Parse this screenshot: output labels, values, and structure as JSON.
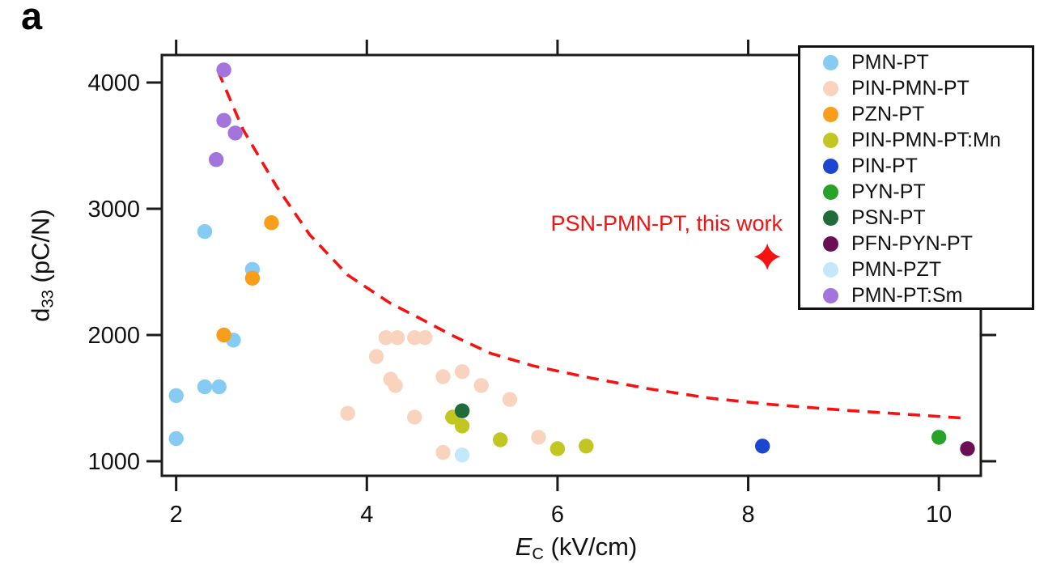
{
  "panel_label": "a",
  "colors": {
    "axis": "#1a1a1a",
    "background": "#ffffff",
    "highlight_red": "#f71111"
  },
  "axis": {
    "x_label": {
      "symbol": "E",
      "subscript": "C",
      "unit": " (kV/cm)"
    },
    "y_label": {
      "symbol": "d",
      "subscript": "33",
      "unit": " (pC/N)"
    }
  },
  "annotation": {
    "text": "PSN-PMN-PT, this work"
  },
  "chart_data": {
    "type": "scatter",
    "xlabel": "E_C (kV/cm)",
    "ylabel": "d33 (pC/N)",
    "xlim": [
      1.85,
      10.44
    ],
    "ylim": [
      885,
      4218
    ],
    "x_ticks": [
      2,
      4,
      6,
      8,
      10
    ],
    "y_ticks": [
      1000,
      2000,
      3000,
      4000
    ],
    "grid": false,
    "legend_position": "top-right",
    "series": [
      {
        "name": "PMN-PT",
        "color": "#85cbf2",
        "points": [
          [
            2.3,
            2820
          ],
          [
            2.8,
            2520
          ],
          [
            2.6,
            1960
          ],
          [
            2.3,
            1590
          ],
          [
            2.45,
            1590
          ],
          [
            2.0,
            1520
          ],
          [
            2.0,
            1180
          ]
        ]
      },
      {
        "name": "PIN-PMN-PT",
        "color": "#fad3be",
        "points": [
          [
            3.8,
            1380
          ],
          [
            4.1,
            1830
          ],
          [
            4.2,
            1980
          ],
          [
            4.32,
            1980
          ],
          [
            4.5,
            1980
          ],
          [
            4.61,
            1980
          ],
          [
            4.25,
            1650
          ],
          [
            4.3,
            1600
          ],
          [
            4.5,
            1350
          ],
          [
            4.8,
            1670
          ],
          [
            4.8,
            1070
          ],
          [
            5.0,
            1710
          ],
          [
            5.2,
            1600
          ],
          [
            5.5,
            1490
          ],
          [
            5.8,
            1190
          ]
        ]
      },
      {
        "name": "PZN-PT",
        "color": "#f89e1b",
        "points": [
          [
            2.5,
            2000
          ],
          [
            2.8,
            2450
          ],
          [
            3.0,
            2890
          ]
        ]
      },
      {
        "name": "PIN-PMN-PT:Mn",
        "color": "#c1c623",
        "points": [
          [
            4.9,
            1350
          ],
          [
            5.0,
            1280
          ],
          [
            5.4,
            1170
          ],
          [
            6.0,
            1100
          ],
          [
            6.3,
            1120
          ]
        ]
      },
      {
        "name": "PIN-PT",
        "color": "#1c45d0",
        "points": [
          [
            8.15,
            1120
          ]
        ]
      },
      {
        "name": "PYN-PT",
        "color": "#28a228",
        "points": [
          [
            10.0,
            1190
          ]
        ]
      },
      {
        "name": "PSN-PT",
        "color": "#1f6b3a",
        "points": [
          [
            5.0,
            1400
          ]
        ]
      },
      {
        "name": "PFN-PYN-PT",
        "color": "#6b0e56",
        "points": [
          [
            10.3,
            1100
          ]
        ]
      },
      {
        "name": "PMN-PZT",
        "color": "#c2e8fa",
        "points": [
          [
            5.0,
            1050
          ]
        ]
      },
      {
        "name": "PMN-PT:Sm",
        "color": "#a274dc",
        "points": [
          [
            2.5,
            4100
          ],
          [
            2.5,
            3700
          ],
          [
            2.62,
            3600
          ],
          [
            2.42,
            3390
          ]
        ]
      }
    ],
    "trend_line": {
      "style": "dashed",
      "color": "#f71111",
      "points": [
        [
          2.44,
          4090
        ],
        [
          2.7,
          3630
        ],
        [
          3.05,
          3180
        ],
        [
          3.4,
          2795
        ],
        [
          3.8,
          2475
        ],
        [
          4.25,
          2250
        ],
        [
          4.55,
          2135
        ],
        [
          4.9,
          1995
        ],
        [
          5.3,
          1855
        ],
        [
          5.75,
          1755
        ],
        [
          6.35,
          1660
        ],
        [
          6.95,
          1575
        ],
        [
          7.6,
          1500
        ],
        [
          8.25,
          1450
        ],
        [
          9.0,
          1405
        ],
        [
          9.7,
          1370
        ],
        [
          10.3,
          1340
        ]
      ]
    },
    "highlight": {
      "label": "PSN-PMN-PT, this work",
      "x": 8.2,
      "y": 2620,
      "color": "#f71111",
      "marker": "four-point-star"
    }
  }
}
